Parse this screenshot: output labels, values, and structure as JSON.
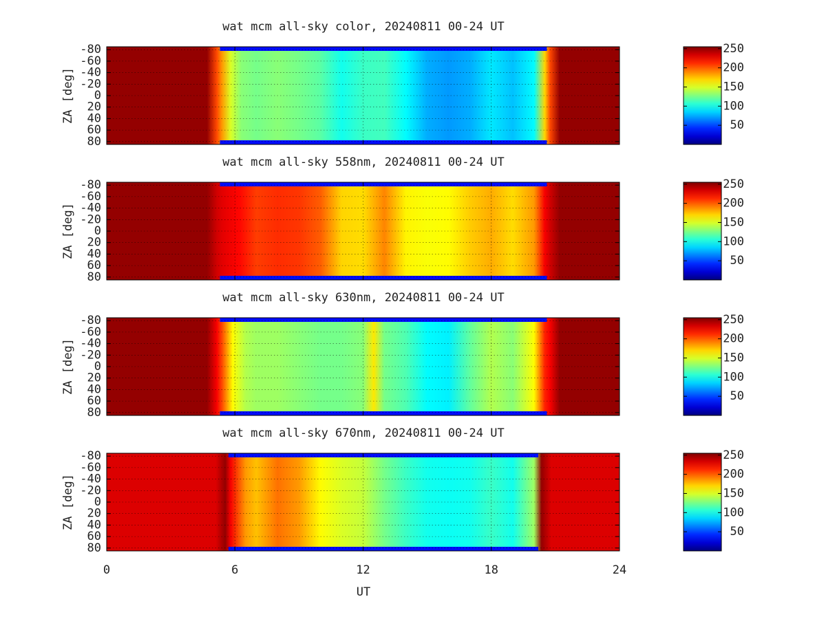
{
  "chart_data": {
    "type": "heatmap",
    "xlabel": "UT",
    "ylabel": "ZA [deg]",
    "xlim": [
      0,
      24
    ],
    "ylim": [
      -85,
      85
    ],
    "x_ticks": [
      "0",
      "6",
      "12",
      "18",
      "24"
    ],
    "x_tick_values": [
      0,
      6,
      12,
      18,
      24
    ],
    "y_ticks": [
      "-80",
      "-60",
      "-40",
      "-20",
      "0",
      "20",
      "40",
      "60",
      "80"
    ],
    "y_tick_values": [
      -80,
      -60,
      -40,
      -20,
      0,
      20,
      40,
      60,
      80
    ],
    "colorbar": {
      "ticks": [
        "50",
        "100",
        "150",
        "200",
        "250"
      ],
      "tick_values": [
        50,
        100,
        150,
        200,
        250
      ],
      "range": [
        0,
        255
      ],
      "colormap": "jet"
    },
    "grid": true,
    "panels": [
      {
        "title": "wat mcm all-sky color, 20240811 00-24 UT",
        "night_start_ut": 5.3,
        "night_end_ut": 20.6,
        "day_value": 250,
        "twilight_value": 205,
        "profile": [
          [
            5.4,
            185
          ],
          [
            5.8,
            150
          ],
          [
            6.3,
            130
          ],
          [
            7.0,
            125
          ],
          [
            8.0,
            130
          ],
          [
            9.0,
            125
          ],
          [
            10.0,
            118
          ],
          [
            11.0,
            100
          ],
          [
            12.0,
            110
          ],
          [
            13.0,
            112
          ],
          [
            14.0,
            95
          ],
          [
            15.0,
            75
          ],
          [
            16.0,
            70
          ],
          [
            17.0,
            75
          ],
          [
            18.0,
            90
          ],
          [
            19.0,
            80
          ],
          [
            20.0,
            95
          ],
          [
            20.5,
            170
          ]
        ]
      },
      {
        "title": "wat mcm all-sky 558nm, 20240811 00-24 UT",
        "night_start_ut": 5.3,
        "night_end_ut": 20.6,
        "day_value": 250,
        "twilight_value": 235,
        "profile": [
          [
            5.4,
            230
          ],
          [
            6.2,
            222
          ],
          [
            7.0,
            208
          ],
          [
            8.0,
            212
          ],
          [
            9.0,
            210
          ],
          [
            10.0,
            200
          ],
          [
            11.0,
            170
          ],
          [
            12.0,
            168
          ],
          [
            13.0,
            190
          ],
          [
            14.0,
            162
          ],
          [
            15.0,
            158
          ],
          [
            16.0,
            160
          ],
          [
            17.0,
            172
          ],
          [
            18.0,
            180
          ],
          [
            19.0,
            168
          ],
          [
            20.0,
            185
          ],
          [
            20.5,
            225
          ]
        ]
      },
      {
        "title": "wat mcm all-sky 630nm, 20240811 00-24 UT",
        "night_start_ut": 5.3,
        "night_end_ut": 20.6,
        "day_value": 250,
        "twilight_value": 225,
        "profile": [
          [
            5.4,
            205
          ],
          [
            5.9,
            160
          ],
          [
            6.5,
            140
          ],
          [
            7.0,
            135
          ],
          [
            8.0,
            135
          ],
          [
            9.0,
            130
          ],
          [
            10.0,
            125
          ],
          [
            11.0,
            125
          ],
          [
            12.0,
            130
          ],
          [
            12.5,
            165
          ],
          [
            13.0,
            125
          ],
          [
            14.0,
            115
          ],
          [
            15.0,
            95
          ],
          [
            16.0,
            92
          ],
          [
            17.0,
            120
          ],
          [
            18.0,
            140
          ],
          [
            19.0,
            130
          ],
          [
            20.0,
            160
          ],
          [
            20.5,
            215
          ]
        ]
      },
      {
        "title": "wat mcm all-sky 670nm, 20240811 00-24 UT",
        "night_start_ut": 5.7,
        "night_end_ut": 20.2,
        "day_value": 232,
        "twilight_value": 250,
        "profile": [
          [
            5.8,
            225
          ],
          [
            6.5,
            185
          ],
          [
            7.0,
            175
          ],
          [
            8.0,
            195
          ],
          [
            9.0,
            185
          ],
          [
            10.0,
            160
          ],
          [
            11.0,
            150
          ],
          [
            12.0,
            145
          ],
          [
            13.0,
            125
          ],
          [
            14.0,
            110
          ],
          [
            15.0,
            100
          ],
          [
            16.0,
            98
          ],
          [
            17.0,
            100
          ],
          [
            18.0,
            110
          ],
          [
            19.0,
            100
          ],
          [
            20.0,
            135
          ]
        ]
      }
    ]
  }
}
